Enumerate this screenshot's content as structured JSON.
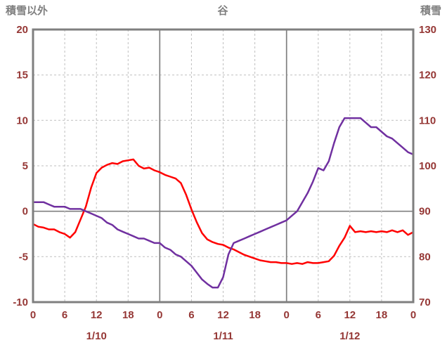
{
  "page": {
    "background": "#ffffff"
  },
  "colors": {
    "tick_label": "#953735",
    "axis_title": "#7f7f7f",
    "frame": "#7f7f7f",
    "grid_minor": "#bfbfbf",
    "grid_major": "#7f7f7f",
    "series_red": "#ff0000",
    "series_purple": "#7030a0",
    "plot_background": "#ffffff"
  },
  "chart_data": {
    "type": "line",
    "title": "谷",
    "legend": "none",
    "grid": true,
    "x_unit": "hour",
    "x_range": [
      0,
      72
    ],
    "x_tick_interval": 6,
    "sample_interval_hours": 1,
    "x_tick_labels": [
      "0",
      "6",
      "12",
      "18",
      "0",
      "6",
      "12",
      "18",
      "0",
      "6",
      "12",
      "18",
      "0"
    ],
    "date_labels": [
      {
        "label": "1/10",
        "hour": 12
      },
      {
        "label": "1/11",
        "hour": 36
      },
      {
        "label": "1/12",
        "hour": 60
      }
    ],
    "left_axis": {
      "title": "積雪以外",
      "min": -10,
      "max": 20,
      "tick_step": 5,
      "ticks": [
        20,
        15,
        10,
        5,
        0,
        -5,
        -10
      ]
    },
    "right_axis": {
      "title": "積雪",
      "min": 70,
      "max": 130,
      "tick_step": 10,
      "ticks": [
        130,
        120,
        110,
        100,
        90,
        80,
        70
      ]
    },
    "series": [
      {
        "name": "積雪以外",
        "data_name": "red-left-axis-line",
        "axis": "left",
        "color": "#ff0000",
        "values": [
          -1.4,
          -1.7,
          -1.8,
          -2.0,
          -2.0,
          -2.3,
          -2.5,
          -2.9,
          -2.3,
          -0.9,
          0.5,
          2.6,
          4.2,
          4.8,
          5.1,
          5.3,
          5.2,
          5.5,
          5.6,
          5.7,
          5.0,
          4.7,
          4.8,
          4.5,
          4.3,
          4.0,
          3.8,
          3.6,
          3.1,
          1.8,
          0.2,
          -1.2,
          -2.4,
          -3.1,
          -3.4,
          -3.6,
          -3.7,
          -4.0,
          -4.2,
          -4.5,
          -4.8,
          -5.0,
          -5.2,
          -5.4,
          -5.5,
          -5.6,
          -5.6,
          -5.7,
          -5.7,
          -5.8,
          -5.7,
          -5.8,
          -5.6,
          -5.7,
          -5.7,
          -5.6,
          -5.5,
          -4.9,
          -3.8,
          -2.9,
          -1.6,
          -2.3,
          -2.2,
          -2.3,
          -2.2,
          -2.3,
          -2.2,
          -2.3,
          -2.1,
          -2.3,
          -2.1,
          -2.6,
          -2.3
        ]
      },
      {
        "name": "積雪",
        "data_name": "purple-right-axis-line",
        "axis": "right",
        "color": "#7030a0",
        "values": [
          92,
          92,
          92,
          91.5,
          91,
          91,
          91,
          90.5,
          90.5,
          90.5,
          90,
          89.5,
          89,
          88.5,
          87.5,
          87,
          86,
          85.5,
          85,
          84.5,
          84,
          84,
          83.5,
          83,
          83,
          82,
          81.5,
          80.5,
          80,
          79,
          78,
          76.5,
          75,
          74,
          73.2,
          73.2,
          75.5,
          80.5,
          83,
          83.5,
          84,
          84.5,
          85,
          85.5,
          86,
          86.5,
          87,
          87.5,
          88,
          89,
          90,
          92,
          94,
          96.5,
          99.5,
          99,
          101,
          105,
          108.5,
          110.5,
          110.5,
          110.5,
          110.5,
          109.5,
          108.5,
          108.5,
          107.5,
          106.5,
          106,
          105,
          104,
          103,
          102.5
        ]
      }
    ]
  }
}
